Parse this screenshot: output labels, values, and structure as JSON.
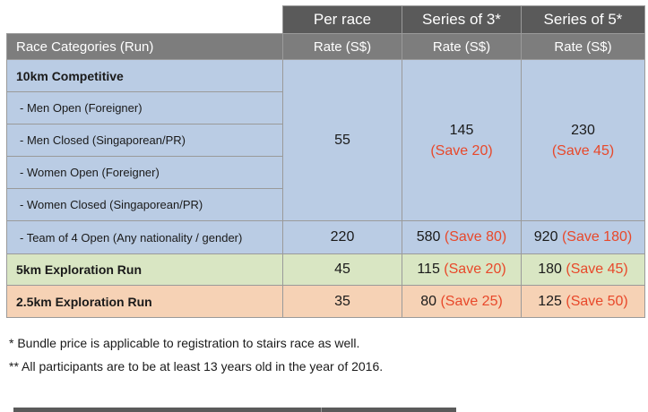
{
  "header": {
    "columns": [
      "Per race",
      "Series of 3*",
      "Series of 5*"
    ],
    "category_label": "Race Categories (Run)",
    "rate_label": "Rate (S$)"
  },
  "rows": {
    "competitive": {
      "title": "10km Competitive",
      "subs": [
        "- Men Open (Foreigner)",
        "- Men Closed (Singaporean/PR)",
        "- Women Open (Foreigner)",
        "- Women Closed (Singaporean/PR)"
      ],
      "per_race": "55",
      "series3": {
        "price": "145",
        "save": "(Save 20)"
      },
      "series5": {
        "price": "230",
        "save": "(Save 45)"
      }
    },
    "team": {
      "label": "- Team of 4 Open (Any nationality / gender)",
      "per_race": "220",
      "series3": {
        "price": "580",
        "save": "(Save 80)"
      },
      "series5": {
        "price": "920",
        "save": "(Save 180)"
      }
    },
    "exploration5k": {
      "label": "5km Exploration Run",
      "per_race": "45",
      "series3": {
        "price": "115",
        "save": "(Save 20)"
      },
      "series5": {
        "price": "180",
        "save": "(Save 45)"
      }
    },
    "exploration25k": {
      "label": "2.5km Exploration Run",
      "per_race": "35",
      "series3": {
        "price": "80",
        "save": "(Save 25)"
      },
      "series5": {
        "price": "125",
        "save": "(Save 50)"
      }
    }
  },
  "notes": [
    "* Bundle price is applicable to registration to stairs race as well.",
    "** All participants are to be at least 13 years old in the year of 2016."
  ],
  "colors": {
    "header_dark": "#5a5a5a",
    "header_mid": "#7d7d7d",
    "blue_row": "#bacce4",
    "green_row": "#d9e6c3",
    "peach_row": "#f6d2b5",
    "save_text": "#e8482a"
  }
}
